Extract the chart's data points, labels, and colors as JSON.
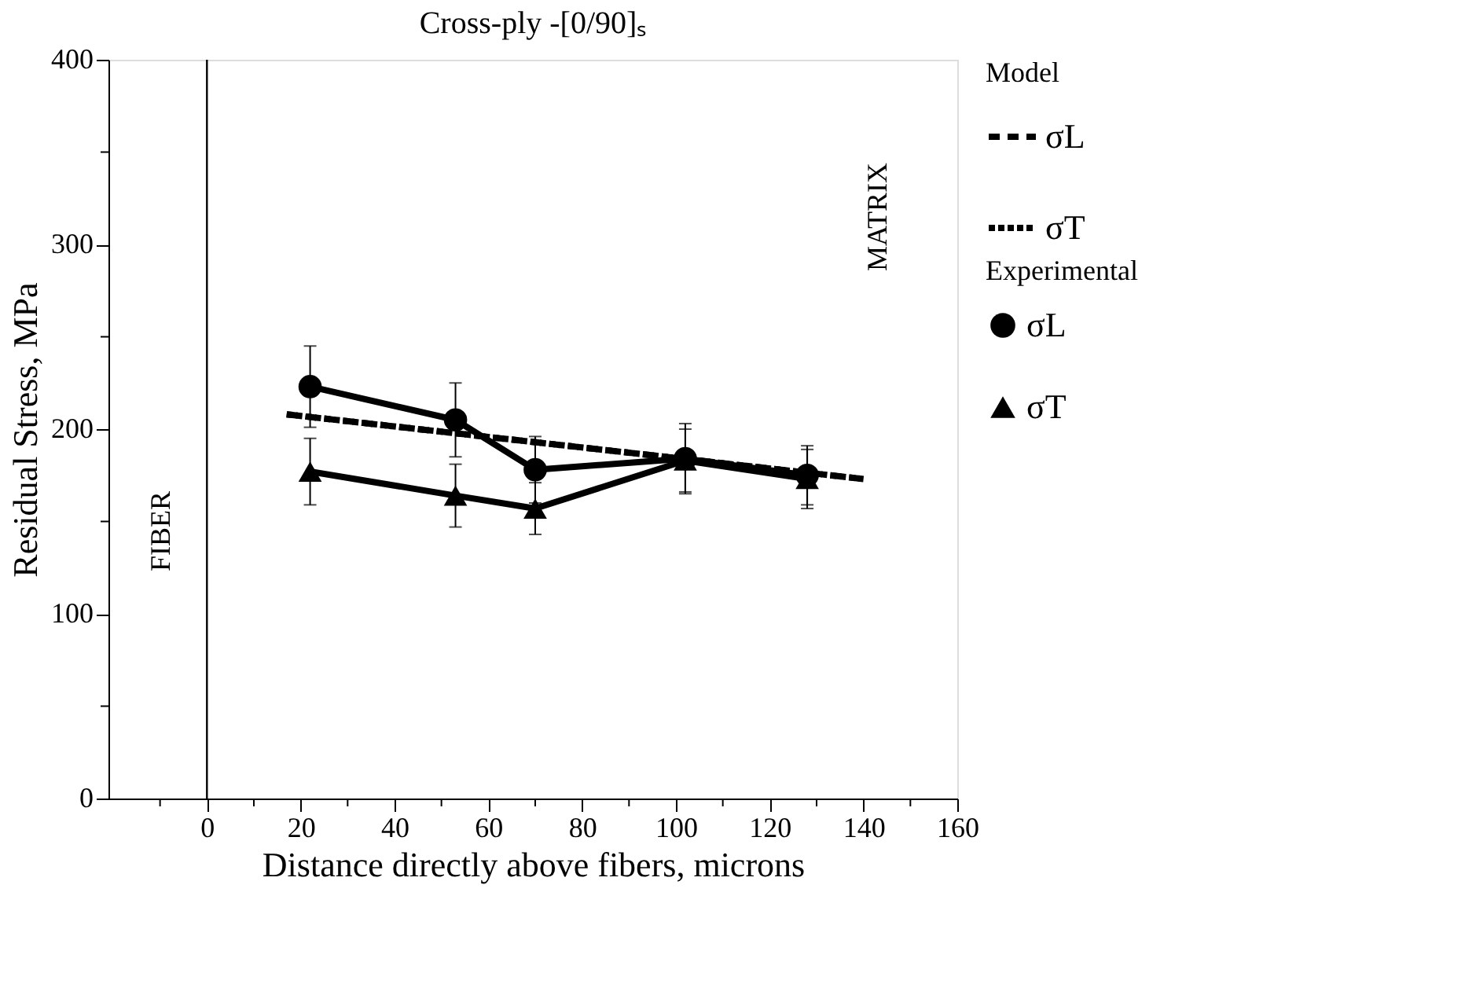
{
  "chart_data": {
    "type": "line",
    "title": "Cross-ply -[0/90]ₛ",
    "xlabel": "Distance directly above fibers, microns",
    "ylabel": "Residual Stress,  MPa",
    "xlim": [
      -21,
      160
    ],
    "ylim": [
      0,
      400
    ],
    "xticks": [
      {
        "value": -10,
        "label": null
      },
      0,
      {
        "value": 10,
        "label": null
      },
      20,
      {
        "value": 30,
        "label": null
      },
      40,
      {
        "value": 50,
        "label": null
      },
      60,
      {
        "value": 70,
        "label": null
      },
      80,
      {
        "value": 90,
        "label": null
      },
      100,
      {
        "value": 110,
        "label": null
      },
      120,
      {
        "value": 130,
        "label": null
      },
      140,
      {
        "value": 150,
        "label": null
      },
      160
    ],
    "yticks": [
      0,
      {
        "value": 50,
        "label": null
      },
      100,
      {
        "value": 150,
        "label": null
      },
      200,
      {
        "value": 250,
        "label": null
      },
      300,
      {
        "value": 350,
        "label": null
      },
      400
    ],
    "grid": false,
    "legend": "right",
    "legend_title": [
      "Model",
      "Experimental"
    ],
    "annotations": [
      "FIBER",
      "MATRIX"
    ],
    "ref_lines": [
      {
        "axis": "x",
        "value": 0,
        "color": "#000000",
        "line_style": "solid"
      }
    ],
    "series": [
      {
        "name": "σL",
        "color": "#000000",
        "line_style": "dashed",
        "marker": "none",
        "x": [
          17,
          140
        ],
        "values": [
          208,
          173
        ]
      },
      {
        "name": "σT",
        "color": "#000000",
        "line_style": "dotted",
        "marker": "none",
        "x": [
          17,
          140
        ],
        "values": [
          208,
          173
        ]
      },
      {
        "name": "σL",
        "color": "#000000",
        "line_style": "solid",
        "marker": "circle",
        "x": [
          22,
          53,
          70,
          102,
          128
        ],
        "values": [
          223,
          205,
          178,
          184,
          175
        ],
        "errors": [
          22,
          20,
          18,
          19,
          16
        ]
      },
      {
        "name": "σT",
        "color": "#000000",
        "line_style": "solid",
        "marker": "triangle",
        "x": [
          22,
          53,
          70,
          102,
          128
        ],
        "values": [
          177,
          164,
          157,
          183,
          173
        ],
        "errors": [
          18,
          17,
          14,
          17,
          16
        ]
      }
    ]
  }
}
